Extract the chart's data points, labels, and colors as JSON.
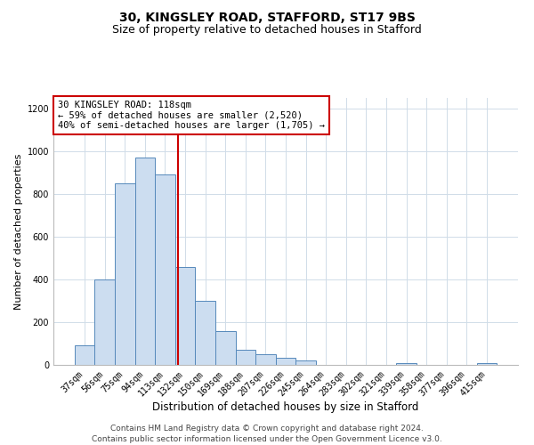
{
  "title1": "30, KINGSLEY ROAD, STAFFORD, ST17 9BS",
  "title2": "Size of property relative to detached houses in Stafford",
  "xlabel": "Distribution of detached houses by size in Stafford",
  "ylabel": "Number of detached properties",
  "categories": [
    "37sqm",
    "56sqm",
    "75sqm",
    "94sqm",
    "113sqm",
    "132sqm",
    "150sqm",
    "169sqm",
    "188sqm",
    "207sqm",
    "226sqm",
    "245sqm",
    "264sqm",
    "283sqm",
    "302sqm",
    "321sqm",
    "339sqm",
    "358sqm",
    "377sqm",
    "396sqm",
    "415sqm"
  ],
  "values": [
    90,
    400,
    850,
    970,
    890,
    460,
    300,
    160,
    70,
    50,
    33,
    20,
    0,
    0,
    0,
    0,
    10,
    0,
    0,
    0,
    10
  ],
  "bar_color": "#ccddf0",
  "bar_edge_color": "#5588bb",
  "grid_color": "#d0dce8",
  "annotation_box_text": "30 KINGSLEY ROAD: 118sqm\n← 59% of detached houses are smaller (2,520)\n40% of semi-detached houses are larger (1,705) →",
  "annotation_box_edge_color": "#cc0000",
  "vline_color": "#cc0000",
  "ylim": [
    0,
    1250
  ],
  "yticks": [
    0,
    200,
    400,
    600,
    800,
    1000,
    1200
  ],
  "footer_line1": "Contains HM Land Registry data © Crown copyright and database right 2024.",
  "footer_line2": "Contains public sector information licensed under the Open Government Licence v3.0.",
  "title1_fontsize": 10,
  "title2_fontsize": 9,
  "xlabel_fontsize": 8.5,
  "ylabel_fontsize": 8,
  "tick_fontsize": 7,
  "annotation_fontsize": 7.5,
  "footer_fontsize": 6.5
}
